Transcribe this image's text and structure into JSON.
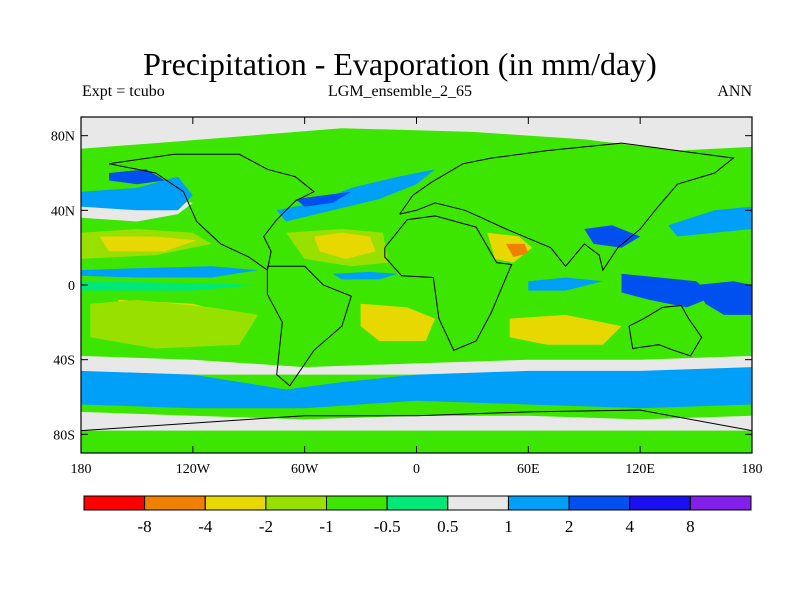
{
  "chart_data": {
    "type": "heatmap",
    "title": "Precipitation - Evaporation (in mm/day)",
    "subtitle_left": "Expt = tcubo",
    "subtitle_center": "LGM_ensemble_2_65",
    "subtitle_right": "ANN",
    "x_ticks": [
      "180",
      "120W",
      "60W",
      "0",
      "60E",
      "120E",
      "180"
    ],
    "y_ticks": [
      "80N",
      "40N",
      "0",
      "40S",
      "80S"
    ],
    "colorbar": {
      "colors": [
        "#ff0000",
        "#f08000",
        "#e6d800",
        "#98e000",
        "#3ce600",
        "#00e878",
        "#e8e8e8",
        "#00a0f8",
        "#0050f0",
        "#1a10f0",
        "#8020e8"
      ],
      "labels": [
        "-8",
        "-4",
        "-2",
        "-1",
        "-0.5",
        "0.5",
        "1",
        "2",
        "4",
        "8"
      ]
    },
    "region_colors": {
      "background": "#3ce600",
      "dry_strong": "#e6d800",
      "dry_extreme": "#f08000",
      "dry_mild": "#98e000",
      "neutral_low": "#00e878",
      "neutral": "#e8e8e8",
      "wet": "#00a0f8",
      "wet_strong": "#0050f0"
    }
  }
}
